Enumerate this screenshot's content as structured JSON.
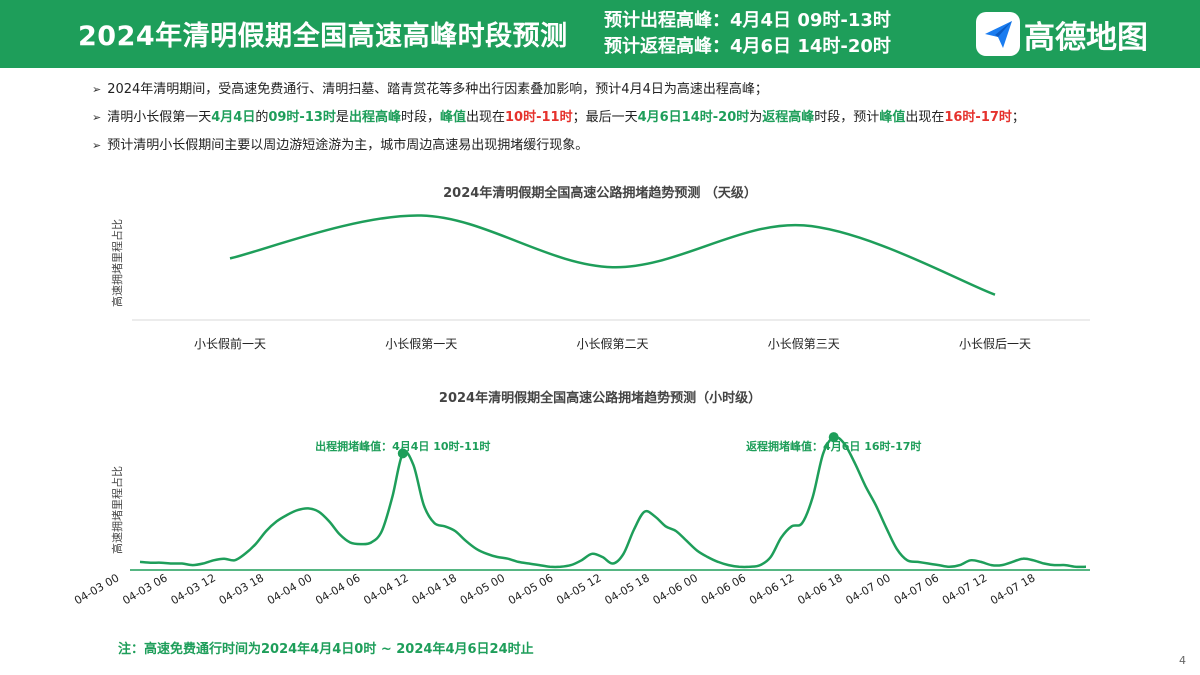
{
  "header": {
    "title": "2024年清明假期全国高速高峰时段预测",
    "line1": "预计出程高峰：4月4日 09时-13时",
    "line2": "预计返程高峰：4月6日 14时-20时",
    "logo_text": "高德地图",
    "colors": {
      "brand": "#1e9e5a",
      "text": "#ffffff"
    }
  },
  "bullets": [
    [
      {
        "t": "2024年清明期间，受高速免费通行、清明扫墓、踏青赏花等多种出行因素叠加影响，预计4月4日为高速出程高峰；",
        "s": ""
      }
    ],
    [
      {
        "t": "清明小长假第一天",
        "s": ""
      },
      {
        "t": "4月4日",
        "s": "g"
      },
      {
        "t": "的",
        "s": ""
      },
      {
        "t": "09时-13时",
        "s": "g"
      },
      {
        "t": "是",
        "s": ""
      },
      {
        "t": "出程高峰",
        "s": "g"
      },
      {
        "t": "时段，",
        "s": ""
      },
      {
        "t": "峰值",
        "s": "g"
      },
      {
        "t": "出现在",
        "s": ""
      },
      {
        "t": "10时-11时",
        "s": "r"
      },
      {
        "t": "；最后一天",
        "s": ""
      },
      {
        "t": "4月6日14时-20时",
        "s": "g"
      },
      {
        "t": "为",
        "s": ""
      },
      {
        "t": "返程高峰",
        "s": "g"
      },
      {
        "t": "时段，预计",
        "s": ""
      },
      {
        "t": "峰值",
        "s": "g"
      },
      {
        "t": "出现在",
        "s": ""
      },
      {
        "t": "16时-17时",
        "s": "r"
      },
      {
        "t": "；",
        "s": ""
      }
    ],
    [
      {
        "t": "预计清明小长假期间主要以周边游短途游为主，城市周边高速易出现拥堵缓行现象。",
        "s": ""
      }
    ]
  ],
  "chart_data": [
    {
      "type": "line",
      "title": "2024年清明假期全国高速公路拥堵趋势预测 （天级）",
      "ylabel": "高速拥堵里程占比",
      "xlabel": "",
      "categories": [
        "小长假前一天",
        "小长假第一天",
        "小长假第二天",
        "小长假第三天",
        "小长假后一天"
      ],
      "series": [
        {
          "values": [
            0.56,
            0.95,
            0.48,
            0.86,
            0.23
          ]
        }
      ],
      "ylim": [
        0,
        1
      ],
      "color": "#1e9e5a",
      "grid": false
    },
    {
      "type": "line",
      "title": "2024年清明假期全国高速公路拥堵趋势预测（小时级）",
      "ylabel": "高速拥堵里程占比",
      "xlabel": "",
      "xticks": [
        "04-03 00",
        "04-03 06",
        "04-03 12",
        "04-03 18",
        "04-04 00",
        "04-04 06",
        "04-04 12",
        "04-04 18",
        "04-05 00",
        "04-05 06",
        "04-05 12",
        "04-05 18",
        "04-06 00",
        "04-06 06",
        "04-06 12",
        "04-06 18",
        "04-07 00",
        "04-07 06",
        "04-07 12",
        "04-07 18"
      ],
      "series": [
        {
          "values": [
            0.05,
            0.045,
            0.045,
            0.04,
            0.04,
            0.03,
            0.04,
            0.06,
            0.07,
            0.06,
            0.1,
            0.16,
            0.24,
            0.3,
            0.34,
            0.37,
            0.38,
            0.36,
            0.3,
            0.22,
            0.17,
            0.16,
            0.17,
            0.24,
            0.45,
            0.72,
            0.65,
            0.4,
            0.29,
            0.27,
            0.24,
            0.18,
            0.13,
            0.1,
            0.08,
            0.07,
            0.05,
            0.04,
            0.03,
            0.02,
            0.02,
            0.03,
            0.06,
            0.1,
            0.08,
            0.04,
            0.1,
            0.25,
            0.36,
            0.33,
            0.27,
            0.24,
            0.18,
            0.12,
            0.08,
            0.05,
            0.03,
            0.02,
            0.02,
            0.03,
            0.08,
            0.2,
            0.27,
            0.29,
            0.45,
            0.72,
            0.82,
            0.78,
            0.66,
            0.52,
            0.4,
            0.26,
            0.13,
            0.06,
            0.05,
            0.04,
            0.03,
            0.02,
            0.03,
            0.06,
            0.05,
            0.03,
            0.03,
            0.05,
            0.07,
            0.06,
            0.04,
            0.03,
            0.03,
            0.02,
            0.02
          ]
        }
      ],
      "ylim": [
        0,
        1
      ],
      "annotations": [
        {
          "label": "出程拥堵峰值：4月4日 10时-11时",
          "index": 25
        },
        {
          "label": "返程拥堵峰值：4月6日 16时-17时",
          "index": 66
        }
      ],
      "color": "#1e9e5a",
      "grid": false
    }
  ],
  "note": "注：高速免费通行时间为2024年4月4日0时 ~ 2024年4月6日24时止",
  "page_number": "4"
}
